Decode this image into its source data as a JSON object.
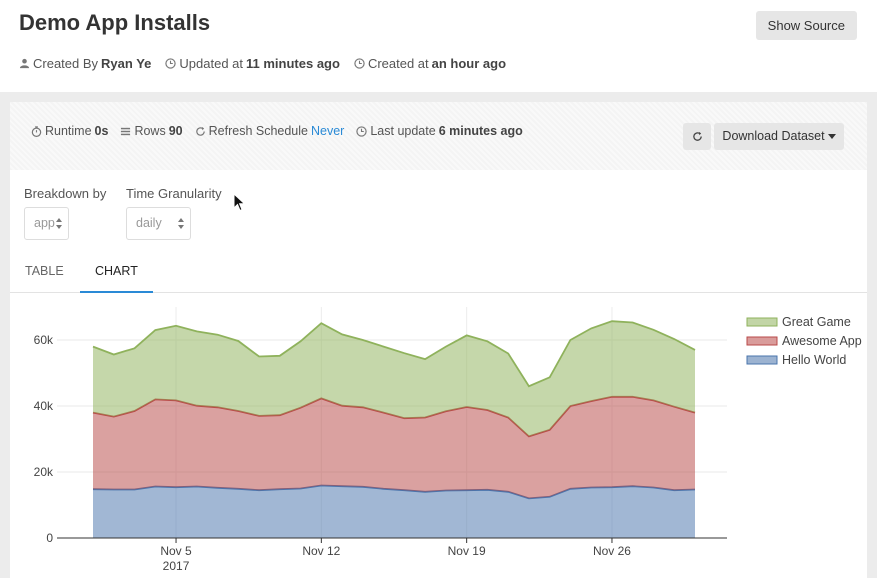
{
  "header": {
    "title": "Demo App Installs",
    "show_source": "Show Source",
    "created_by_label": "Created By",
    "created_by_value": "Ryan Ye",
    "updated_label": "Updated at",
    "updated_value": "11 minutes ago",
    "created_label": "Created at",
    "created_value": "an hour ago"
  },
  "stats": {
    "runtime_label": "Runtime",
    "runtime_value": "0s",
    "rows_label": "Rows",
    "rows_value": "90",
    "refresh_label": "Refresh Schedule",
    "refresh_value": "Never",
    "last_update_label": "Last update",
    "last_update_value": "6 minutes ago",
    "download": "Download Dataset"
  },
  "filters": {
    "breakdown_label": "Breakdown by",
    "breakdown_value": "app",
    "granularity_label": "Time Granularity",
    "granularity_value": "daily"
  },
  "tabs": [
    {
      "label": "TABLE"
    },
    {
      "label": "CHART"
    }
  ],
  "colors": {
    "accent": "#2a8ad6",
    "great_game": "#8fb25c",
    "awesome_app": "#b94a48",
    "hello_world": "#4a74ac"
  },
  "chart_data": {
    "type": "area",
    "stacked": true,
    "x_start": "2017-11-01",
    "x_end": "2017-11-30",
    "x_ticks": [
      "Nov 5",
      "Nov 12",
      "Nov 19",
      "Nov 26"
    ],
    "x_year": "2017",
    "y_ticks": [
      "0",
      "20k",
      "40k",
      "60k"
    ],
    "ylim": [
      0,
      70000
    ],
    "grid": true,
    "legend": "right",
    "series": [
      {
        "name": "Hello World",
        "color": "#4a74ac",
        "values": [
          14800,
          14700,
          14700,
          15600,
          15400,
          15600,
          15200,
          14900,
          14500,
          14800,
          15000,
          15900,
          15700,
          15500,
          14900,
          14500,
          14000,
          14400,
          14500,
          14600,
          14000,
          12000,
          12500,
          14900,
          15300,
          15400,
          15700,
          15300,
          14500,
          14700
        ]
      },
      {
        "name": "Awesome App",
        "color": "#b94a48",
        "values": [
          23200,
          22100,
          23800,
          26400,
          26300,
          24500,
          24400,
          23600,
          22500,
          22400,
          24500,
          26400,
          24400,
          24100,
          23100,
          21800,
          22500,
          24000,
          25200,
          24200,
          22500,
          18800,
          20300,
          25100,
          26200,
          27400,
          27100,
          26400,
          25300,
          23300
        ]
      },
      {
        "name": "Great Game",
        "color": "#8fb25c",
        "values": [
          20000,
          18800,
          19000,
          21000,
          22600,
          22500,
          22000,
          21200,
          18000,
          18000,
          20100,
          22800,
          21600,
          20400,
          20000,
          19700,
          17700,
          19600,
          21700,
          20800,
          19400,
          15200,
          15900,
          20000,
          22000,
          22900,
          22500,
          21400,
          20500,
          19000
        ]
      }
    ]
  }
}
